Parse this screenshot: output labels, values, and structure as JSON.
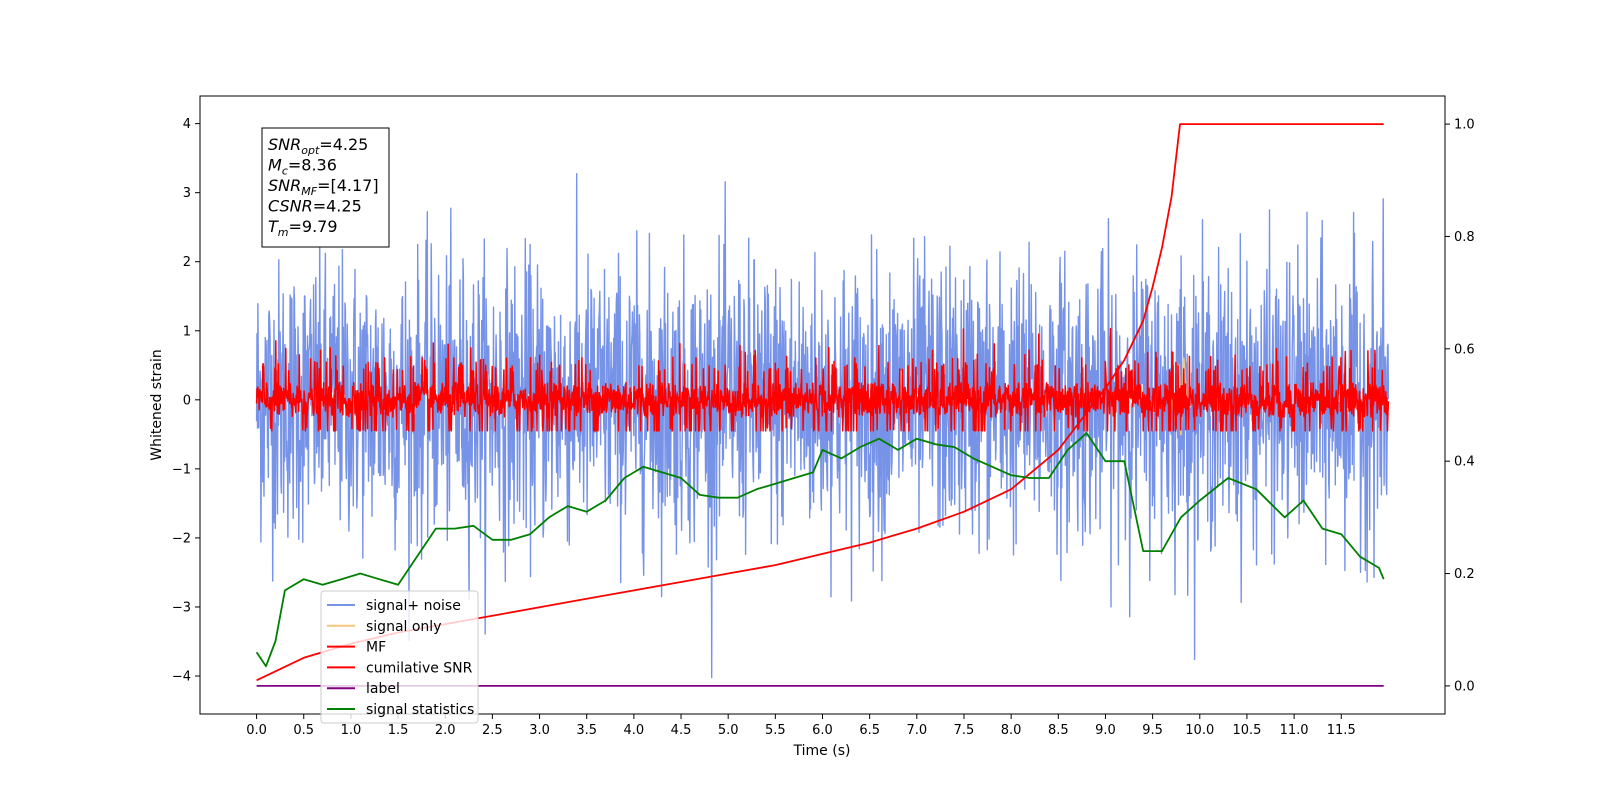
{
  "chart_data": {
    "type": "line",
    "xlabel": "Time (s)",
    "ylabel": "Whitened strain",
    "xlim": [
      -0.6,
      12.6
    ],
    "ylim": [
      -4.55,
      4.4
    ],
    "y2lim": [
      -0.05,
      1.05
    ],
    "x_ticks": [
      0.0,
      0.5,
      1.0,
      1.5,
      2.0,
      2.5,
      3.0,
      3.5,
      4.0,
      4.5,
      5.0,
      5.5,
      6.0,
      6.5,
      7.0,
      7.5,
      8.0,
      8.5,
      9.0,
      9.5,
      10.0,
      10.5,
      11.0,
      11.5
    ],
    "x_tick_labels": [
      "0.0",
      "0.5",
      "1.0",
      "1.5",
      "2.0",
      "2.5",
      "3.0",
      "3.5",
      "4.0",
      "4.5",
      "5.0",
      "5.5",
      "6.0",
      "6.5",
      "7.0",
      "7.5",
      "8.0",
      "8.5",
      "9.0",
      "9.5",
      "10.0",
      "10.5",
      "11.0",
      "11.5"
    ],
    "y_ticks": [
      -4,
      -3,
      -2,
      -1,
      0,
      1,
      2,
      3,
      4
    ],
    "y_tick_labels": [
      "−4",
      "−3",
      "−2",
      "−1",
      "0",
      "1",
      "2",
      "3",
      "4"
    ],
    "y2_ticks": [
      0.0,
      0.2,
      0.4,
      0.6,
      0.8,
      1.0
    ],
    "y2_tick_labels": [
      "0.0",
      "0.2",
      "0.4",
      "0.6",
      "0.8",
      "1.0"
    ],
    "grid": false,
    "legend_position": "lower-left",
    "annotation": [
      {
        "base": "SNR",
        "sub": "opt",
        "value": "=4.25"
      },
      {
        "base": "M",
        "sub": "c",
        "value": "=8.36"
      },
      {
        "base": "SNR",
        "sub": "MF",
        "value": "=[4.17]"
      },
      {
        "base": "CSNR",
        "sub": "",
        "value": "=4.25"
      },
      {
        "base": "T",
        "sub": "m",
        "value": "=9.79"
      }
    ],
    "series": [
      {
        "name": "signal+ noise",
        "color": "#7793e8",
        "kind": "noise",
        "amplitude_std": 1.0,
        "x_range": [
          0.0,
          12.0
        ]
      },
      {
        "name": "signal only",
        "color": "#f5c77e",
        "kind": "burst",
        "x": [
          9.7,
          9.75,
          9.78,
          9.8,
          9.83,
          9.86
        ],
        "y": [
          0.0,
          -0.4,
          0.5,
          -0.5,
          0.6,
          0.0
        ]
      },
      {
        "name": "MF",
        "color": "#ff0000",
        "kind": "noise",
        "amplitude_std": 0.18,
        "x_range": [
          0.0,
          12.0
        ]
      },
      {
        "name": "cumilative SNR",
        "color": "#ff0000",
        "axis": "right",
        "x": [
          0.0,
          0.5,
          1.0,
          1.5,
          2.0,
          2.5,
          3.0,
          3.5,
          4.0,
          4.5,
          5.0,
          5.5,
          6.0,
          6.5,
          7.0,
          7.5,
          8.0,
          8.5,
          9.0,
          9.2,
          9.4,
          9.5,
          9.6,
          9.7,
          9.79,
          11.95
        ],
        "y": [
          0.01,
          0.05,
          0.075,
          0.095,
          0.11,
          0.125,
          0.14,
          0.155,
          0.17,
          0.185,
          0.2,
          0.215,
          0.235,
          0.255,
          0.28,
          0.31,
          0.35,
          0.42,
          0.53,
          0.58,
          0.65,
          0.71,
          0.78,
          0.87,
          1.0,
          1.0
        ]
      },
      {
        "name": "label",
        "color": "#800080",
        "axis": "right",
        "x": [
          0.0,
          11.95
        ],
        "y": [
          0.0,
          0.0
        ]
      },
      {
        "name": "signal statistics",
        "color": "#008000",
        "axis": "right",
        "x": [
          0.0,
          0.1,
          0.2,
          0.3,
          0.5,
          0.7,
          0.9,
          1.1,
          1.3,
          1.5,
          1.7,
          1.9,
          2.1,
          2.3,
          2.5,
          2.7,
          2.9,
          3.1,
          3.3,
          3.5,
          3.7,
          3.9,
          4.1,
          4.3,
          4.5,
          4.7,
          4.9,
          5.1,
          5.3,
          5.5,
          5.7,
          5.9,
          6.0,
          6.2,
          6.4,
          6.6,
          6.8,
          7.0,
          7.2,
          7.4,
          7.6,
          7.8,
          8.0,
          8.2,
          8.4,
          8.6,
          8.8,
          9.0,
          9.2,
          9.4,
          9.6,
          9.8,
          10.0,
          10.3,
          10.6,
          10.9,
          11.1,
          11.3,
          11.5,
          11.7,
          11.9,
          11.95
        ],
        "y": [
          0.06,
          0.035,
          0.08,
          0.17,
          0.19,
          0.18,
          0.19,
          0.2,
          0.19,
          0.18,
          0.23,
          0.28,
          0.28,
          0.285,
          0.26,
          0.26,
          0.27,
          0.3,
          0.32,
          0.31,
          0.33,
          0.37,
          0.39,
          0.38,
          0.37,
          0.34,
          0.335,
          0.335,
          0.35,
          0.36,
          0.37,
          0.38,
          0.42,
          0.405,
          0.425,
          0.44,
          0.42,
          0.44,
          0.43,
          0.425,
          0.405,
          0.39,
          0.375,
          0.37,
          0.37,
          0.42,
          0.45,
          0.4,
          0.4,
          0.24,
          0.24,
          0.3,
          0.33,
          0.37,
          0.35,
          0.3,
          0.33,
          0.28,
          0.27,
          0.23,
          0.21,
          0.19
        ]
      }
    ]
  }
}
